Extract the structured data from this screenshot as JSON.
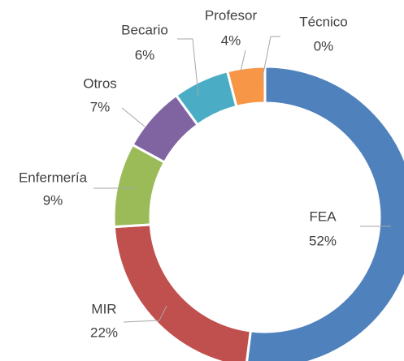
{
  "chart_data": {
    "type": "donut",
    "categories": [
      "FEA",
      "MIR",
      "Enfermería",
      "Otros",
      "Becario",
      "Profesor",
      "Técnico"
    ],
    "values": [
      52,
      22,
      9,
      7,
      6,
      4,
      0
    ],
    "value_labels": [
      "52%",
      "22%",
      "9%",
      "7%",
      "6%",
      "4%",
      "0%"
    ],
    "colors": [
      "#4f81bd",
      "#c0504d",
      "#9bbb59",
      "#8064a2",
      "#4bacc6",
      "#f79646",
      "#2c4d75"
    ]
  }
}
